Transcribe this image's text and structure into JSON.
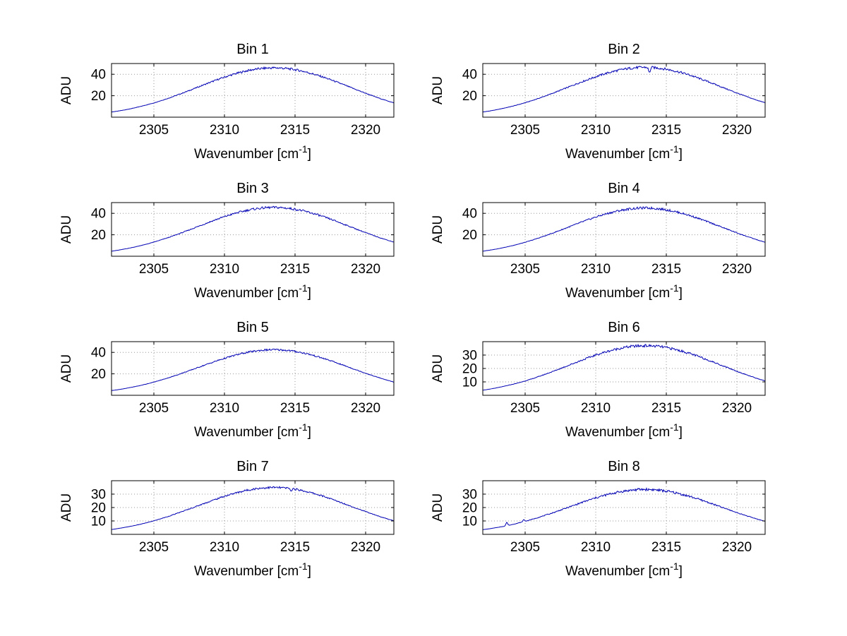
{
  "figure": {
    "background": "#ffffff",
    "line_color": "#0000b4",
    "grid_color": "#9a9a9a",
    "axis_color": "#000000",
    "text_color": "#000000"
  },
  "chart_data": [
    {
      "type": "line",
      "title": "Bin 1",
      "xlabel": "Wavenumber [cm^-1]",
      "xlabel_base": "Wavenumber [cm",
      "xlabel_sup": "-1",
      "xlabel_close": "]",
      "ylabel": "ADU",
      "xlim": [
        2302,
        2322
      ],
      "ylim": [
        0,
        50
      ],
      "xticks": [
        2305,
        2310,
        2315,
        2320
      ],
      "yticks": [
        20,
        40
      ],
      "grid": true,
      "x_start": 2302,
      "x_step": 0.5,
      "y": [
        4.8,
        5.8,
        6.9,
        8.3,
        9.8,
        11.5,
        13.3,
        15.4,
        17.5,
        19.9,
        22.3,
        24.8,
        27.4,
        30.0,
        32.5,
        35.0,
        37.3,
        39.4,
        41.3,
        43.0,
        44.3,
        45.2,
        45.8,
        46.0,
        45.8,
        45.2,
        44.3,
        43.0,
        41.3,
        39.4,
        37.3,
        35.0,
        32.5,
        30.0,
        27.4,
        24.8,
        22.3,
        19.9,
        17.5,
        15.4,
        13.3
      ],
      "noise_amp": 1.1,
      "spikes": []
    },
    {
      "type": "line",
      "title": "Bin 2",
      "xlabel": "Wavenumber [cm^-1]",
      "xlabel_base": "Wavenumber [cm",
      "xlabel_sup": "-1",
      "xlabel_close": "]",
      "ylabel": "ADU",
      "xlim": [
        2302,
        2322
      ],
      "ylim": [
        0,
        50
      ],
      "xticks": [
        2305,
        2310,
        2315,
        2320
      ],
      "yticks": [
        20,
        40
      ],
      "grid": true,
      "x_start": 2302,
      "x_step": 0.5,
      "y": [
        4.8,
        5.8,
        7.0,
        8.4,
        9.9,
        11.6,
        13.5,
        15.5,
        17.7,
        20.1,
        22.5,
        25.1,
        27.7,
        30.3,
        32.9,
        35.3,
        37.7,
        39.9,
        41.8,
        43.4,
        44.7,
        45.7,
        46.3,
        46.5,
        46.3,
        45.7,
        44.7,
        43.4,
        41.8,
        39.9,
        37.7,
        35.3,
        32.9,
        30.3,
        27.7,
        25.1,
        22.5,
        20.1,
        17.7,
        15.5,
        13.5
      ],
      "noise_amp": 1.2,
      "spikes": [
        {
          "x": 2313.8,
          "dy": -5
        }
      ]
    },
    {
      "type": "line",
      "title": "Bin 3",
      "xlabel": "Wavenumber [cm^-1]",
      "xlabel_base": "Wavenumber [cm",
      "xlabel_sup": "-1",
      "xlabel_close": "]",
      "ylabel": "ADU",
      "xlim": [
        2302,
        2322
      ],
      "ylim": [
        0,
        50
      ],
      "xticks": [
        2305,
        2310,
        2315,
        2320
      ],
      "yticks": [
        20,
        40
      ],
      "grid": true,
      "x_start": 2302,
      "x_step": 0.5,
      "y": [
        4.7,
        5.7,
        6.9,
        8.2,
        9.7,
        11.3,
        13.2,
        15.2,
        17.3,
        19.6,
        22.0,
        24.5,
        27.1,
        29.6,
        32.2,
        34.6,
        36.9,
        39.0,
        40.9,
        42.5,
        43.8,
        44.7,
        45.3,
        45.5,
        45.3,
        44.7,
        43.8,
        42.5,
        40.9,
        39.0,
        36.9,
        34.6,
        32.2,
        29.6,
        27.1,
        24.5,
        22.0,
        19.6,
        17.3,
        15.2,
        13.2
      ],
      "noise_amp": 1.1,
      "spikes": []
    },
    {
      "type": "line",
      "title": "Bin 4",
      "xlabel": "Wavenumber [cm^-1]",
      "xlabel_base": "Wavenumber [cm",
      "xlabel_sup": "-1",
      "xlabel_close": "]",
      "ylabel": "ADU",
      "xlim": [
        2302,
        2322
      ],
      "ylim": [
        0,
        50
      ],
      "xticks": [
        2305,
        2310,
        2315,
        2320
      ],
      "yticks": [
        20,
        40
      ],
      "grid": true,
      "x_start": 2302,
      "x_step": 0.5,
      "y": [
        4.7,
        5.7,
        6.8,
        8.1,
        9.6,
        11.2,
        13.0,
        15.0,
        17.2,
        19.4,
        21.8,
        24.3,
        26.8,
        29.3,
        31.8,
        34.2,
        36.5,
        38.6,
        40.4,
        42.0,
        43.3,
        44.2,
        44.8,
        45.0,
        44.8,
        44.2,
        43.3,
        42.0,
        40.4,
        38.6,
        36.5,
        34.2,
        31.8,
        29.3,
        26.8,
        24.3,
        21.8,
        19.4,
        17.2,
        15.0,
        13.0
      ],
      "noise_amp": 1.1,
      "spikes": []
    },
    {
      "type": "line",
      "title": "Bin 5",
      "xlabel": "Wavenumber [cm^-1]",
      "xlabel_base": "Wavenumber [cm",
      "xlabel_sup": "-1",
      "xlabel_close": "]",
      "ylabel": "ADU",
      "xlim": [
        2302,
        2322
      ],
      "ylim": [
        0,
        50
      ],
      "xticks": [
        2305,
        2310,
        2315,
        2320
      ],
      "yticks": [
        20,
        40
      ],
      "grid": true,
      "x_start": 2302,
      "x_step": 0.5,
      "y": [
        4.4,
        5.3,
        6.4,
        7.7,
        9.0,
        10.6,
        12.3,
        14.2,
        16.2,
        18.3,
        20.6,
        22.9,
        25.3,
        27.7,
        30.0,
        32.3,
        34.4,
        36.4,
        38.2,
        39.7,
        40.9,
        41.8,
        42.3,
        42.5,
        42.3,
        41.8,
        40.9,
        39.7,
        38.2,
        36.4,
        34.4,
        32.3,
        30.0,
        27.7,
        25.3,
        22.9,
        20.6,
        18.3,
        16.2,
        14.2,
        12.3
      ],
      "noise_amp": 0.9,
      "spikes": []
    },
    {
      "type": "line",
      "title": "Bin 6",
      "xlabel": "Wavenumber [cm^-1]",
      "xlabel_base": "Wavenumber [cm",
      "xlabel_sup": "-1",
      "xlabel_close": "]",
      "ylabel": "ADU",
      "xlim": [
        2302,
        2322
      ],
      "ylim": [
        0,
        40
      ],
      "xticks": [
        2305,
        2310,
        2315,
        2320
      ],
      "yticks": [
        10,
        20,
        30
      ],
      "grid": true,
      "x_start": 2302,
      "x_step": 0.5,
      "y": [
        3.8,
        4.6,
        5.6,
        6.7,
        7.9,
        9.2,
        10.7,
        12.3,
        14.1,
        16.0,
        17.9,
        20.0,
        22.0,
        24.1,
        26.1,
        28.1,
        30.0,
        31.7,
        33.2,
        34.5,
        35.6,
        36.4,
        36.8,
        37.0,
        36.8,
        36.4,
        35.6,
        34.5,
        33.2,
        31.7,
        30.0,
        28.1,
        26.1,
        24.1,
        22.0,
        20.0,
        17.9,
        16.0,
        14.1,
        12.3,
        10.7
      ],
      "noise_amp": 1.0,
      "spikes": []
    },
    {
      "type": "line",
      "title": "Bin 7",
      "xlabel": "Wavenumber [cm^-1]",
      "xlabel_base": "Wavenumber [cm",
      "xlabel_sup": "-1",
      "xlabel_close": "]",
      "ylabel": "ADU",
      "xlim": [
        2302,
        2322
      ],
      "ylim": [
        0,
        40
      ],
      "xticks": [
        2305,
        2310,
        2315,
        2320
      ],
      "yticks": [
        10,
        20,
        30
      ],
      "grid": true,
      "x_start": 2302,
      "x_step": 0.5,
      "y": [
        3.6,
        4.4,
        5.3,
        6.3,
        7.4,
        8.7,
        10.1,
        11.7,
        13.3,
        15.1,
        17.0,
        18.9,
        20.8,
        22.8,
        24.7,
        26.6,
        28.4,
        30.0,
        31.4,
        32.7,
        33.7,
        34.4,
        34.8,
        35.0,
        34.8,
        34.4,
        33.7,
        32.7,
        31.4,
        30.0,
        28.4,
        26.6,
        24.7,
        22.8,
        20.8,
        18.9,
        17.0,
        15.1,
        13.3,
        11.7,
        10.1
      ],
      "noise_amp": 0.8,
      "spikes": [
        {
          "x": 2314.7,
          "dy": -1.5
        }
      ]
    },
    {
      "type": "line",
      "title": "Bin 8",
      "xlabel": "Wavenumber [cm^-1]",
      "xlabel_base": "Wavenumber [cm",
      "xlabel_sup": "-1",
      "xlabel_close": "]",
      "ylabel": "ADU",
      "xlim": [
        2302,
        2322
      ],
      "ylim": [
        0,
        40
      ],
      "xticks": [
        2305,
        2310,
        2315,
        2320
      ],
      "yticks": [
        10,
        20,
        30
      ],
      "grid": true,
      "x_start": 2302,
      "x_step": 0.5,
      "y": [
        3.5,
        4.2,
        5.1,
        6.0,
        7.1,
        8.4,
        9.7,
        11.2,
        12.8,
        14.5,
        16.2,
        18.1,
        19.9,
        21.8,
        23.7,
        25.5,
        27.2,
        28.7,
        30.1,
        31.3,
        32.2,
        32.9,
        33.4,
        33.5,
        33.4,
        32.9,
        32.2,
        31.3,
        30.1,
        28.7,
        27.2,
        25.5,
        23.7,
        21.8,
        19.9,
        18.1,
        16.2,
        14.5,
        12.8,
        11.2,
        9.7
      ],
      "noise_amp": 1.0,
      "spikes": [
        {
          "x": 2303.7,
          "dy": 2.5
        },
        {
          "x": 2304.9,
          "dy": 1.5
        }
      ]
    }
  ]
}
